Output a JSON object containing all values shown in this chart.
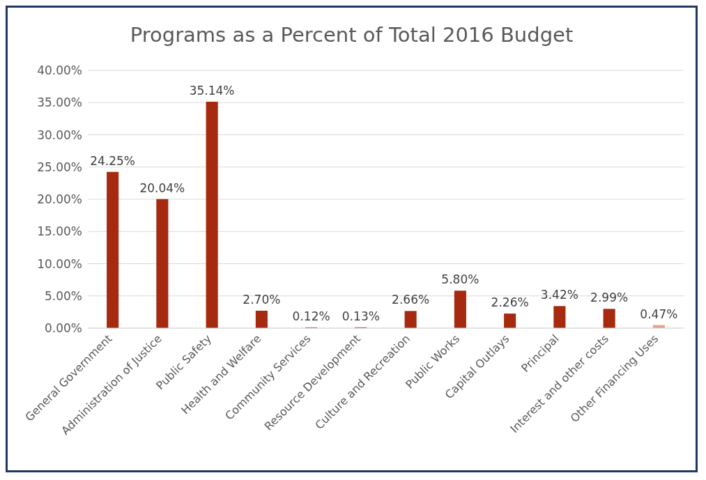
{
  "chart_data": {
    "type": "bar",
    "title": "Programs as a Percent of Total 2016 Budget",
    "categories": [
      "General Government",
      "Administration of Justice",
      "Public Safety",
      "Health and Welfare",
      "Community Services",
      "Resource Development",
      "Culture and Recreation",
      "Public Works",
      "Capital Outlays",
      "Principal",
      "Interest and other costs",
      "Other Financing Uses"
    ],
    "values": [
      24.25,
      20.04,
      35.14,
      2.7,
      0.12,
      0.13,
      2.66,
      5.8,
      2.26,
      3.42,
      2.99,
      0.47
    ],
    "colors": [
      "#a52a0f",
      "#a52a0f",
      "#a52a0f",
      "#a52a0f",
      "#a52a0f",
      "#a52a0f",
      "#a52a0f",
      "#a52a0f",
      "#a52a0f",
      "#a52a0f",
      "#a52a0f",
      "#e8a090"
    ],
    "value_labels": [
      "24.25%",
      "20.04%",
      "35.14%",
      "2.70%",
      "0.12%",
      "0.13%",
      "2.66%",
      "5.80%",
      "2.26%",
      "3.42%",
      "2.99%",
      "0.47%"
    ],
    "ylim": [
      0,
      40
    ],
    "yticks": [
      {
        "value": 0,
        "label": "0.00%"
      },
      {
        "value": 5,
        "label": "5.00%"
      },
      {
        "value": 10,
        "label": "10.00%"
      },
      {
        "value": 15,
        "label": "15.00%"
      },
      {
        "value": 20,
        "label": "20.00%"
      },
      {
        "value": 25,
        "label": "25.00%"
      },
      {
        "value": 30,
        "label": "30.00%"
      },
      {
        "value": 35,
        "label": "35.00%"
      },
      {
        "value": 40,
        "label": "40.00%"
      }
    ],
    "grid": "y",
    "legend": false
  }
}
